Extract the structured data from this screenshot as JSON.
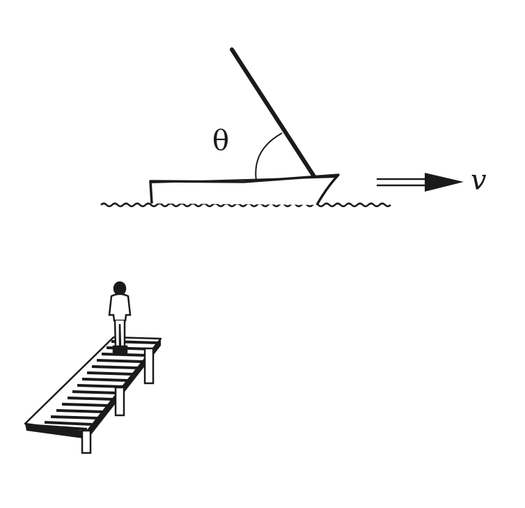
{
  "diagram": {
    "angle_label": "θ",
    "velocity_label": "v"
  },
  "colors": {
    "ink": "#1a1a1a",
    "background": "#ffffff"
  }
}
